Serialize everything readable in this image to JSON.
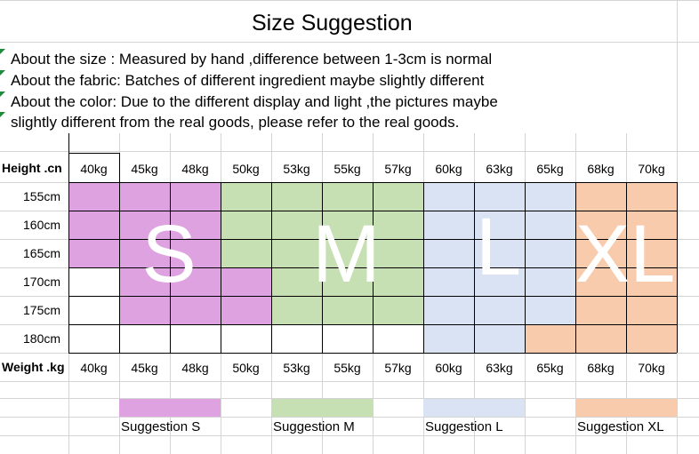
{
  "title": "Size Suggestion",
  "notes": [
    "About the size : Measured by hand ,difference between 1-3cm is normal",
    "About the fabric: Batches of different ingredient maybe slightly different",
    "About the color: Due to the different display and light ,the pictures maybe",
    "slightly different from the real goods, please refer to the real goods."
  ],
  "height_label": "Height .cn",
  "weight_label": "Weight .kg",
  "weights": [
    "40kg",
    "45kg",
    "48kg",
    "50kg",
    "53kg",
    "55kg",
    "57kg",
    "60kg",
    "63kg",
    "65kg",
    "68kg",
    "70kg"
  ],
  "heights": [
    "155cm",
    "160cm",
    "165cm",
    "170cm",
    "175cm",
    "180cm"
  ],
  "size_grid": [
    [
      "S",
      "S",
      "S",
      "M",
      "M",
      "M",
      "M",
      "L",
      "L",
      "L",
      "XL",
      "XL"
    ],
    [
      "S",
      "S",
      "S",
      "M",
      "M",
      "M",
      "M",
      "L",
      "L",
      "L",
      "XL",
      "XL"
    ],
    [
      "S",
      "S",
      "S",
      "M",
      "M",
      "M",
      "M",
      "L",
      "L",
      "L",
      "XL",
      "XL"
    ],
    [
      "",
      "S",
      "S",
      "S",
      "M",
      "M",
      "M",
      "L",
      "L",
      "L",
      "XL",
      "XL"
    ],
    [
      "",
      "S",
      "S",
      "S",
      "M",
      "M",
      "M",
      "L",
      "L",
      "L",
      "XL",
      "XL"
    ],
    [
      "",
      "",
      "",
      "",
      "",
      "",
      "",
      "L",
      "L",
      "XL",
      "XL",
      "XL"
    ]
  ],
  "size_letters": [
    "S",
    "M",
    "L",
    "XL"
  ],
  "colors": {
    "S": "#dea2e0",
    "M": "#c6e0b4",
    "L": "#dae3f3",
    "XL": "#f8cbad",
    "grid": "#000000",
    "sheet_grid": "#d4d4d4"
  },
  "legend": [
    {
      "size": "S",
      "label": "Suggestion S"
    },
    {
      "size": "M",
      "label": "Suggestion M"
    },
    {
      "size": "L",
      "label": "Suggestion L"
    },
    {
      "size": "XL",
      "label": "Suggestion XL"
    }
  ]
}
